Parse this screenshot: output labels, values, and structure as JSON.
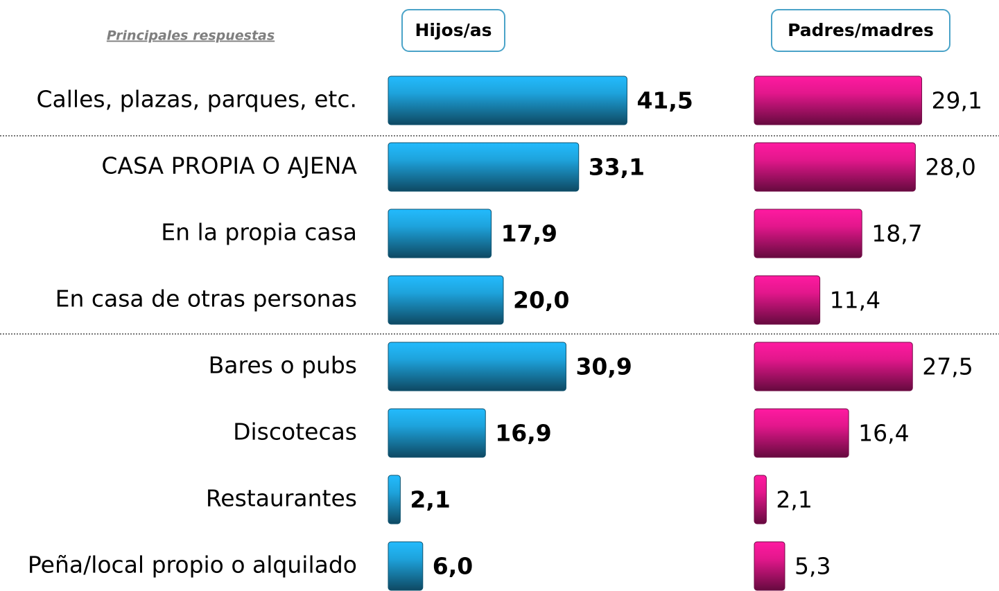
{
  "chart_data": {
    "type": "bar",
    "subtitle": "Principales respuestas",
    "categories": [
      "Calles, plazas, parques, etc.",
      "CASA PROPIA O AJENA",
      "En la propia casa",
      "En casa de otras personas",
      "Bares o pubs",
      "Discotecas",
      "Restaurantes",
      "Peña/local propio o alquilado"
    ],
    "series": [
      {
        "name": "Hijos/as",
        "color": "#1ea3dc",
        "values": [
          41.5,
          33.1,
          17.9,
          20.0,
          30.9,
          16.9,
          2.1,
          6.0
        ],
        "value_labels": [
          "41,5",
          "33,1",
          "17,9",
          "20,0",
          "30,9",
          "16,9",
          "2,1",
          "6,0"
        ]
      },
      {
        "name": "Padres/madres",
        "color": "#e3178c",
        "values": [
          29.1,
          28.0,
          18.7,
          11.4,
          27.5,
          16.4,
          2.1,
          5.3
        ],
        "value_labels": [
          "29,1",
          "28,0",
          "18,7",
          "11,4",
          "27,5",
          "16,4",
          "2,1",
          "5,3"
        ]
      }
    ]
  }
}
